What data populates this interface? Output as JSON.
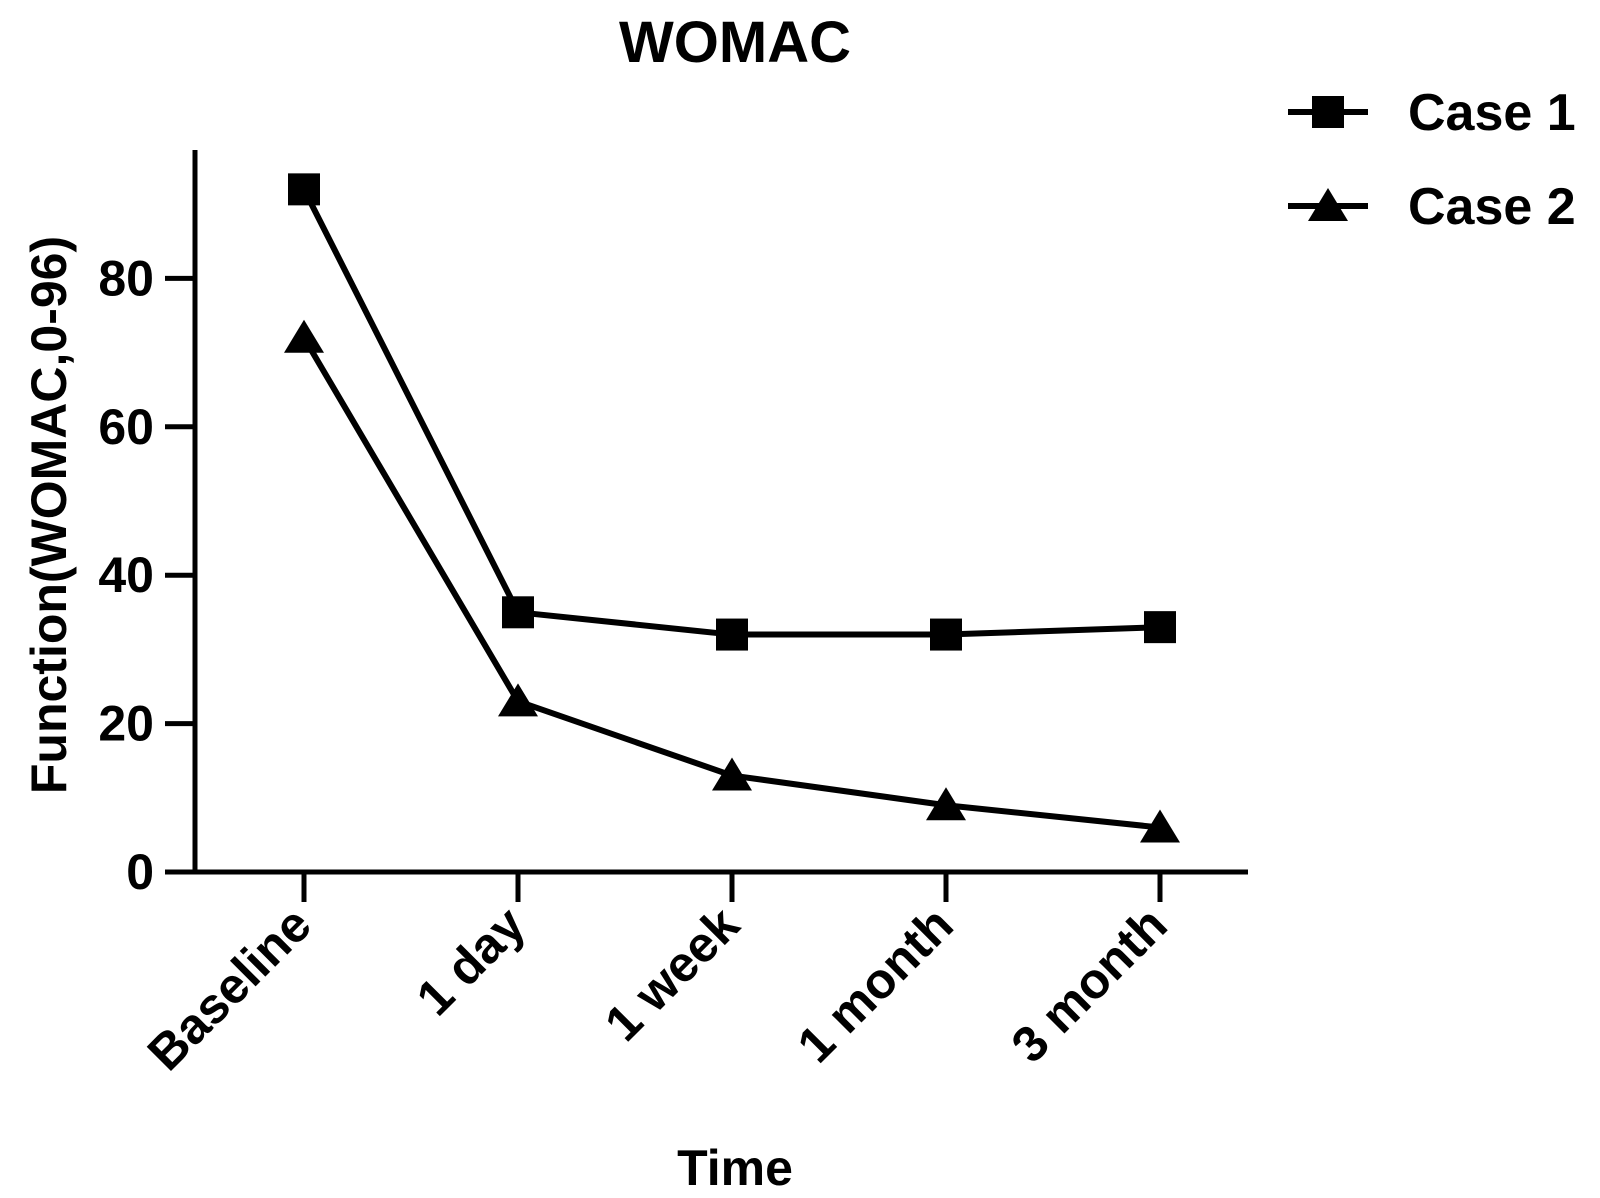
{
  "chart_data": {
    "type": "line",
    "title": "WOMAC",
    "xlabel": "Time",
    "ylabel": "Function(WOMAC,0-96)",
    "categories": [
      "Baseline",
      "1 day",
      "1 week",
      "1 month",
      "3 month"
    ],
    "ylim": [
      0,
      96
    ],
    "yticks": [
      0,
      20,
      40,
      60,
      80
    ],
    "legend_position": "top-right",
    "series": [
      {
        "name": "Case 1",
        "marker": "square",
        "values": [
          92,
          35,
          32,
          32,
          33
        ]
      },
      {
        "name": "Case 2",
        "marker": "triangle",
        "values": [
          72,
          23,
          13,
          9,
          6
        ]
      }
    ],
    "colors": {
      "line": "#000000",
      "background": "#ffffff"
    }
  }
}
